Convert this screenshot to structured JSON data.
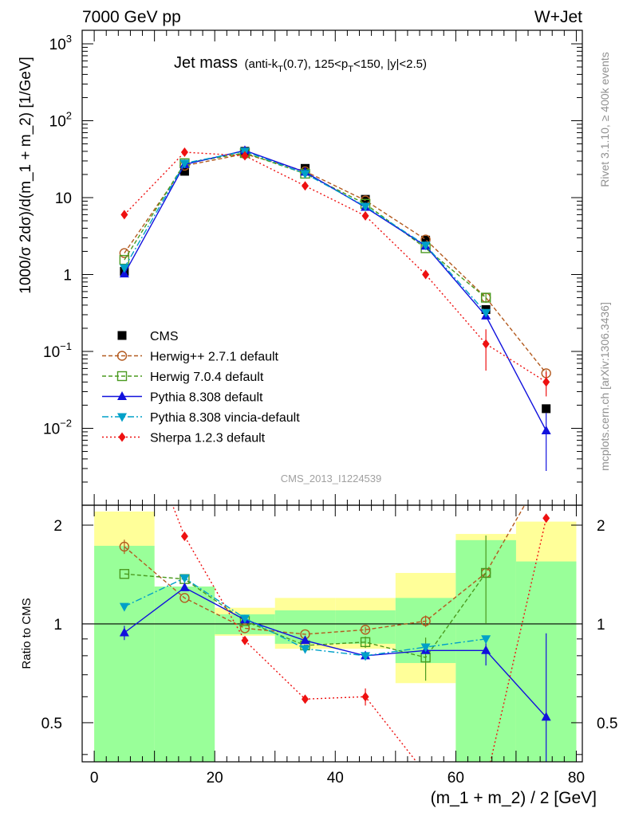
{
  "header": {
    "left": "7000 GeV pp",
    "right": "W+Jet"
  },
  "side_labels": {
    "rivet": "Rivet 3.1.10, ≥ 400k events",
    "mcplots": "mcplots.cern.ch [arXiv:1306.3436]"
  },
  "analysis_id": "CMS_2013_I1224539",
  "chart_data": [
    {
      "type": "line",
      "title_main": "Jet mass",
      "title_sub": "(anti-k_T(0.7), 125<p_T<150, |y|<2.5)",
      "ylabel": "1000/σ 2dσ)/d(m_1 + m_2) [1/GeV]",
      "yscale": "log",
      "ylim": [
        0.001,
        1500
      ],
      "xlim": [
        -2,
        81
      ],
      "x": [
        5,
        15,
        25,
        35,
        45,
        55,
        65,
        75
      ],
      "y_tick_labels": [
        "10^-2",
        "10^-1",
        "1",
        "10",
        "10^2",
        "10^3"
      ],
      "series": [
        {
          "name": "CMS",
          "color": "#000000",
          "marker": "square-filled",
          "values": [
            1.1,
            22,
            40,
            24,
            9.5,
            2.8,
            0.35,
            0.018
          ]
        },
        {
          "name": "Herwig++ 2.7.1 default",
          "color": "#b35a1f",
          "marker": "circle-open",
          "dash": "5,3",
          "values": [
            1.9,
            26,
            37,
            22,
            9.2,
            2.85,
            0.5,
            0.052
          ]
        },
        {
          "name": "Herwig 7.0.4 default",
          "color": "#4a9a1f",
          "marker": "square-open",
          "dash": "5,3",
          "values": [
            1.55,
            28,
            38,
            20.5,
            8.3,
            2.2,
            0.5,
            null
          ]
        },
        {
          "name": "Pythia 8.308 default",
          "color": "#1111dd",
          "marker": "triangle-up",
          "dash": "",
          "values": [
            1.02,
            27,
            41,
            21.5,
            7.5,
            2.35,
            0.29,
            0.0093
          ]
        },
        {
          "name": "Pythia 8.308 vincia-default",
          "color": "#00a0c8",
          "marker": "triangle-down",
          "dash": "8,3,2,3",
          "values": [
            1.22,
            28,
            40,
            20.5,
            7.7,
            2.4,
            0.32,
            null
          ]
        },
        {
          "name": "Sherpa 1.2.3 default",
          "color": "#ee1111",
          "marker": "diamond",
          "dash": "2,3",
          "values": [
            6.0,
            39,
            35,
            14.2,
            5.8,
            1.0,
            0.125,
            0.04
          ]
        }
      ]
    },
    {
      "type": "line",
      "ylabel": "Ratio to CMS",
      "xlabel": "(m_1 + m_2) / 2 [GeV]",
      "yscale": "log",
      "ylim": [
        0.38,
        2.3
      ],
      "xlim": [
        -2,
        81
      ],
      "x_ticks": [
        0,
        20,
        40,
        60,
        80
      ],
      "y_ticks": [
        0.5,
        1,
        2
      ],
      "x": [
        5,
        15,
        25,
        35,
        45,
        55,
        65,
        75
      ],
      "band_edges": [
        0,
        10,
        20,
        30,
        40,
        50,
        60,
        70,
        80
      ],
      "band_inner": [
        [
          0.35,
          1.73
        ],
        [
          0.35,
          1.3
        ],
        [
          0.93,
          1.07
        ],
        [
          0.87,
          1.1
        ],
        [
          0.87,
          1.1
        ],
        [
          0.76,
          1.2
        ],
        [
          0.35,
          1.8
        ],
        [
          0.35,
          1.55
        ]
      ],
      "band_outer": [
        [
          0.35,
          2.2
        ],
        [
          0.78,
          1.3
        ],
        [
          0.92,
          1.12
        ],
        [
          0.84,
          1.2
        ],
        [
          0.84,
          1.2
        ],
        [
          0.66,
          1.43
        ],
        [
          0.35,
          1.88
        ],
        [
          0.35,
          2.05
        ]
      ],
      "series": [
        {
          "name": "Herwig++ 2.7.1 default",
          "color": "#b35a1f",
          "values": [
            1.72,
            1.2,
            0.97,
            0.93,
            0.96,
            1.02,
            1.43,
            3.0
          ]
        },
        {
          "name": "Herwig 7.0.4 default",
          "color": "#4a9a1f",
          "values": [
            1.42,
            1.37,
            1.02,
            0.86,
            0.88,
            0.79,
            1.43,
            null
          ]
        },
        {
          "name": "Pythia 8.308 default",
          "color": "#1111dd",
          "values": [
            0.94,
            1.29,
            1.03,
            0.89,
            0.8,
            0.83,
            0.83,
            0.52
          ]
        },
        {
          "name": "Pythia 8.308 vincia-default",
          "color": "#00a0c8",
          "values": [
            1.13,
            1.38,
            1.04,
            0.84,
            0.8,
            0.85,
            0.9,
            null
          ]
        },
        {
          "name": "Sherpa 1.2.3 default",
          "color": "#ee1111",
          "values": [
            5.5,
            1.85,
            0.89,
            0.59,
            0.6,
            0.35,
            0.33,
            2.1
          ]
        }
      ]
    }
  ]
}
